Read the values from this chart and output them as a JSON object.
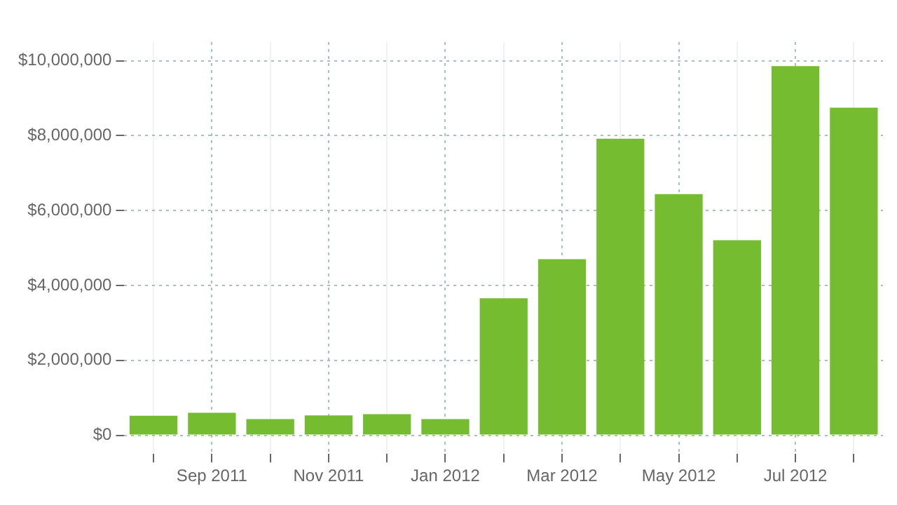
{
  "chart_data": {
    "type": "bar",
    "categories": [
      null,
      "Sep 2011",
      null,
      "Nov 2011",
      null,
      "Jan 2012",
      null,
      "Mar 2012",
      null,
      "May 2012",
      null,
      "Jul 2012",
      null
    ],
    "values": [
      520000,
      600000,
      430000,
      530000,
      560000,
      430000,
      3660000,
      4700000,
      7920000,
      6440000,
      5210000,
      9860000,
      8750000
    ],
    "color": "#76bc31",
    "ylim": [
      -500000,
      10500000
    ],
    "yticks": [
      {
        "value": 0,
        "label": "$0"
      },
      {
        "value": 2000000,
        "label": "$2,000,000"
      },
      {
        "value": 4000000,
        "label": "$4,000,000"
      },
      {
        "value": 6000000,
        "label": "$6,000,000"
      },
      {
        "value": 8000000,
        "label": "$8,000,000"
      },
      {
        "value": 10000000,
        "label": "$10,000,000"
      }
    ],
    "grid": true
  }
}
